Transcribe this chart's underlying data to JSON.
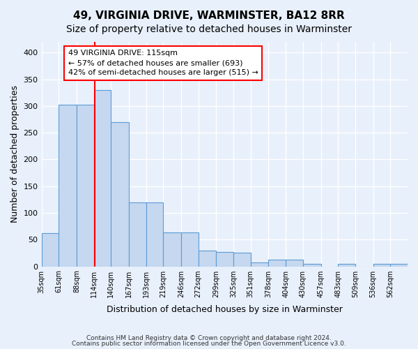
{
  "title1": "49, VIRGINIA DRIVE, WARMINSTER, BA12 8RR",
  "title2": "Size of property relative to detached houses in Warminster",
  "xlabel": "Distribution of detached houses by size in Warminster",
  "ylabel": "Number of detached properties",
  "bar_heights": [
    62,
    302,
    302,
    330,
    270,
    120,
    120,
    63,
    63,
    29,
    27,
    26,
    7,
    13,
    12,
    5,
    0,
    4,
    0,
    4,
    4
  ],
  "bin_edges": [
    35,
    61,
    88,
    114,
    140,
    167,
    193,
    219,
    246,
    272,
    299,
    325,
    351,
    378,
    404,
    430,
    457,
    483,
    509,
    536,
    562,
    588
  ],
  "x_tick_labels": [
    "35sqm",
    "61sqm",
    "88sqm",
    "114sqm",
    "140sqm",
    "167sqm",
    "193sqm",
    "219sqm",
    "246sqm",
    "272sqm",
    "299sqm",
    "325sqm",
    "351sqm",
    "378sqm",
    "404sqm",
    "430sqm",
    "457sqm",
    "483sqm",
    "509sqm",
    "536sqm",
    "562sqm"
  ],
  "bar_color": "#c5d8f0",
  "bar_edge_color": "#5b9bd5",
  "red_line_x": 115,
  "ylim": [
    0,
    420
  ],
  "yticks": [
    0,
    50,
    100,
    150,
    200,
    250,
    300,
    350,
    400
  ],
  "annotation_text": "49 VIRGINIA DRIVE: 115sqm\n← 57% of detached houses are smaller (693)\n42% of semi-detached houses are larger (515) →",
  "annotation_box_color": "white",
  "annotation_box_edge_color": "red",
  "footnote1": "Contains HM Land Registry data © Crown copyright and database right 2024.",
  "footnote2": "Contains public sector information licensed under the Open Government Licence v3.0.",
  "background_color": "#e8f0fb",
  "grid_color": "white",
  "title1_fontsize": 11,
  "title2_fontsize": 10,
  "xlabel_fontsize": 9,
  "ylabel_fontsize": 9,
  "footnote_fontsize": 6.5,
  "tick_fontsize": 7,
  "annot_fontsize": 8
}
